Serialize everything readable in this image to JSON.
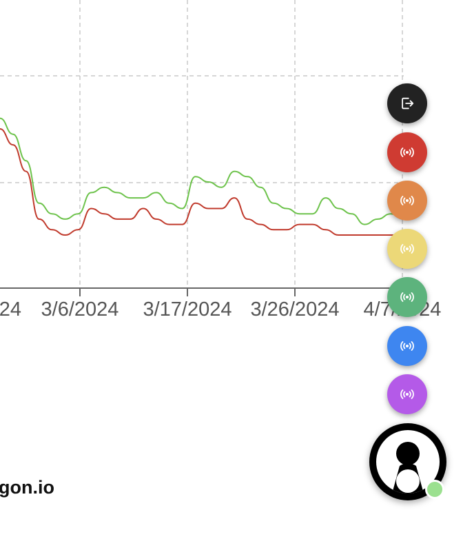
{
  "chart_data": {
    "type": "line",
    "x_tick_labels": [
      "24",
      "3/6/2024",
      "3/17/2024",
      "3/26/2024",
      "4/7/2024"
    ],
    "series": [
      {
        "color": "#6cc24a",
        "values": [
          52,
          49,
          44,
          36,
          34,
          33,
          34,
          38,
          39,
          38,
          37,
          37,
          38,
          36,
          35,
          41,
          40,
          39,
          42,
          41,
          39,
          36,
          35,
          34,
          34,
          37,
          35,
          34,
          32,
          33,
          34,
          33
        ]
      },
      {
        "color": "#c0392b",
        "values": [
          50,
          47,
          42,
          33,
          31,
          30,
          31,
          35,
          34,
          33,
          33,
          35,
          33,
          32,
          32,
          36,
          35,
          35,
          37,
          33,
          32,
          31,
          31,
          32,
          32,
          31,
          30,
          30,
          30,
          30,
          30,
          30
        ]
      }
    ],
    "grid": true
  },
  "brand": {
    "text": "gon.io"
  },
  "fabs": [
    {
      "name": "logout-button",
      "icon": "logout-icon",
      "color": "#222222"
    },
    {
      "name": "broadcast-red-button",
      "icon": "broadcast-icon",
      "color": "#cf3b32"
    },
    {
      "name": "broadcast-orange-button",
      "icon": "broadcast-icon",
      "color": "#e0884a"
    },
    {
      "name": "broadcast-yellow-button",
      "icon": "broadcast-icon",
      "color": "#ecd878"
    },
    {
      "name": "broadcast-green-button",
      "icon": "broadcast-icon",
      "color": "#5db37d"
    },
    {
      "name": "broadcast-blue-button",
      "icon": "broadcast-icon",
      "color": "#3e86f0"
    },
    {
      "name": "broadcast-purple-button",
      "icon": "broadcast-icon",
      "color": "#b45ae8"
    }
  ],
  "avatar": {
    "status_color": "#9be08f"
  }
}
